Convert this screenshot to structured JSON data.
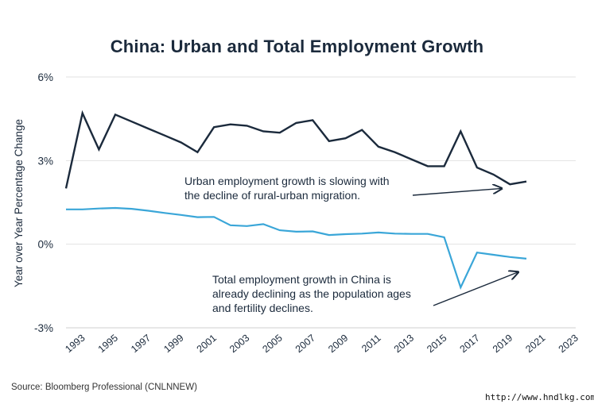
{
  "chart_data": {
    "type": "line",
    "title": "China: Urban and Total Employment Growth",
    "ylabel": "Year over Year Percentage Change",
    "xlabel": "",
    "ylim": [
      -3,
      6
    ],
    "xlim": [
      1992,
      2023
    ],
    "yticks": [
      -3,
      0,
      3,
      6
    ],
    "ytick_labels": [
      "-3%",
      "0%",
      "3%",
      "6%"
    ],
    "xticks": [
      1993,
      1995,
      1997,
      1999,
      2001,
      2003,
      2005,
      2007,
      2009,
      2011,
      2013,
      2015,
      2017,
      2019,
      2021,
      2023
    ],
    "grid": "horizontal",
    "legend": "none",
    "series": [
      {
        "color": "#1b2a3c",
        "points": [
          [
            1992,
            2.0
          ],
          [
            1993,
            4.7
          ],
          [
            1994,
            3.4
          ],
          [
            1995,
            4.65
          ],
          [
            1996,
            4.4
          ],
          [
            1997,
            4.15
          ],
          [
            1998,
            3.9
          ],
          [
            1999,
            3.65
          ],
          [
            2000,
            3.3
          ],
          [
            2001,
            4.2
          ],
          [
            2002,
            4.3
          ],
          [
            2003,
            4.25
          ],
          [
            2004,
            4.05
          ],
          [
            2005,
            4.0
          ],
          [
            2006,
            4.35
          ],
          [
            2007,
            4.45
          ],
          [
            2008,
            3.7
          ],
          [
            2009,
            3.8
          ],
          [
            2010,
            4.1
          ],
          [
            2011,
            3.5
          ],
          [
            2012,
            3.3
          ],
          [
            2013,
            3.05
          ],
          [
            2014,
            2.8
          ],
          [
            2015,
            2.8
          ],
          [
            2016,
            4.05
          ],
          [
            2017,
            2.75
          ],
          [
            2018,
            2.5
          ],
          [
            2019,
            2.15
          ],
          [
            2020,
            2.25
          ]
        ]
      },
      {
        "color": "#3aa6d8",
        "points": [
          [
            1992,
            1.25
          ],
          [
            1993,
            1.25
          ],
          [
            1994,
            1.28
          ],
          [
            1995,
            1.3
          ],
          [
            1996,
            1.27
          ],
          [
            1997,
            1.2
          ],
          [
            1998,
            1.12
          ],
          [
            1999,
            1.05
          ],
          [
            2000,
            0.97
          ],
          [
            2001,
            0.98
          ],
          [
            2002,
            0.68
          ],
          [
            2003,
            0.65
          ],
          [
            2004,
            0.72
          ],
          [
            2005,
            0.5
          ],
          [
            2006,
            0.45
          ],
          [
            2007,
            0.46
          ],
          [
            2008,
            0.33
          ],
          [
            2009,
            0.36
          ],
          [
            2010,
            0.38
          ],
          [
            2011,
            0.42
          ],
          [
            2012,
            0.38
          ],
          [
            2013,
            0.37
          ],
          [
            2014,
            0.37
          ],
          [
            2015,
            0.25
          ],
          [
            2016,
            -1.55
          ],
          [
            2017,
            -0.3
          ],
          [
            2018,
            -0.38
          ],
          [
            2019,
            -0.46
          ],
          [
            2020,
            -0.52
          ]
        ]
      }
    ],
    "annotations": [
      {
        "lines": [
          "Urban employment growth is slowing with",
          "the decline of rural-urban migration."
        ],
        "arrow_to": [
          2018.5,
          2.0
        ]
      },
      {
        "lines": [
          "Total employment growth in China is",
          "already declining as the population ages",
          "and fertility declines."
        ],
        "arrow_to": [
          2019.5,
          -1.0
        ]
      }
    ],
    "source": "Source:  Bloomberg Professional (CNLNNEW)"
  },
  "watermark": "http://www.hndlkg.com"
}
